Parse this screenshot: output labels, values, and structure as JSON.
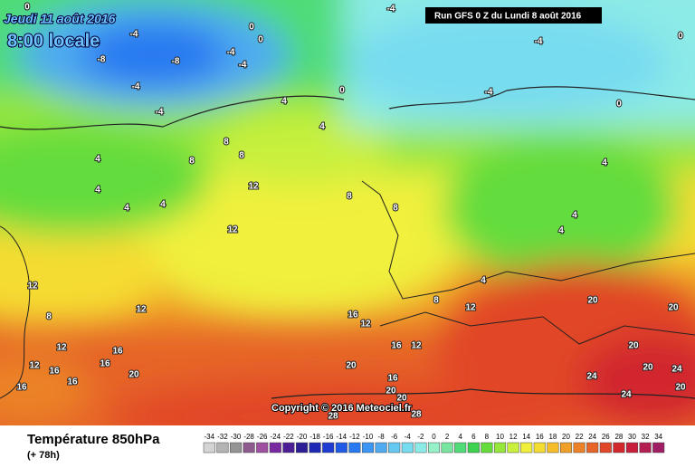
{
  "header": {
    "valid_date": "Jeudi 11 août 2016",
    "valid_time": "8:00 locale",
    "run": "Run GFS 0 Z du Lundi 8 août 2016"
  },
  "copyright": "Copyright © 2016 Meteociel.fr",
  "footer": {
    "title": "Température 850hPa",
    "lead": "(+ 78h)"
  },
  "map_labels": [
    0,
    -4,
    0,
    -4,
    0,
    -4,
    0,
    -8,
    -8,
    -4,
    -4,
    -4,
    0,
    -4,
    -4,
    4,
    4,
    0,
    8,
    8,
    8,
    4,
    4,
    12,
    4,
    8,
    4,
    4,
    8,
    12,
    4,
    4,
    12,
    8,
    4,
    12,
    20,
    20,
    8,
    12,
    16,
    12,
    12,
    16,
    16,
    12,
    12,
    16,
    16,
    20,
    16,
    16,
    20,
    16,
    20,
    20,
    20,
    24,
    24,
    20,
    24,
    20,
    28,
    28
  ],
  "scale": {
    "values": [
      -34,
      -32,
      -30,
      -28,
      -26,
      -24,
      -22,
      -20,
      -18,
      -16,
      -14,
      -12,
      -10,
      -8,
      -6,
      -4,
      -2,
      0,
      2,
      4,
      6,
      8,
      10,
      12,
      14,
      16,
      18,
      20,
      22,
      24,
      26,
      28,
      30,
      32,
      34
    ],
    "colors": [
      "#d4d4d4",
      "#b4b4b4",
      "#949494",
      "#8c5a8c",
      "#a050a0",
      "#7828a0",
      "#4b1e96",
      "#2d1e96",
      "#1e28b4",
      "#1e3cd2",
      "#1e5ae6",
      "#2878f0",
      "#3c96f5",
      "#50aaf0",
      "#64c8f0",
      "#78dcf0",
      "#8cebe6",
      "#96f0c8",
      "#78e6a0",
      "#50dc78",
      "#3cd250",
      "#64dc3c",
      "#96e63c",
      "#c8f03c",
      "#f0f03c",
      "#f5dc32",
      "#f5be28",
      "#f0a028",
      "#eb8228",
      "#e66428",
      "#e14628",
      "#d2282d",
      "#c81e3c",
      "#b41e50",
      "#a01e64"
    ]
  }
}
